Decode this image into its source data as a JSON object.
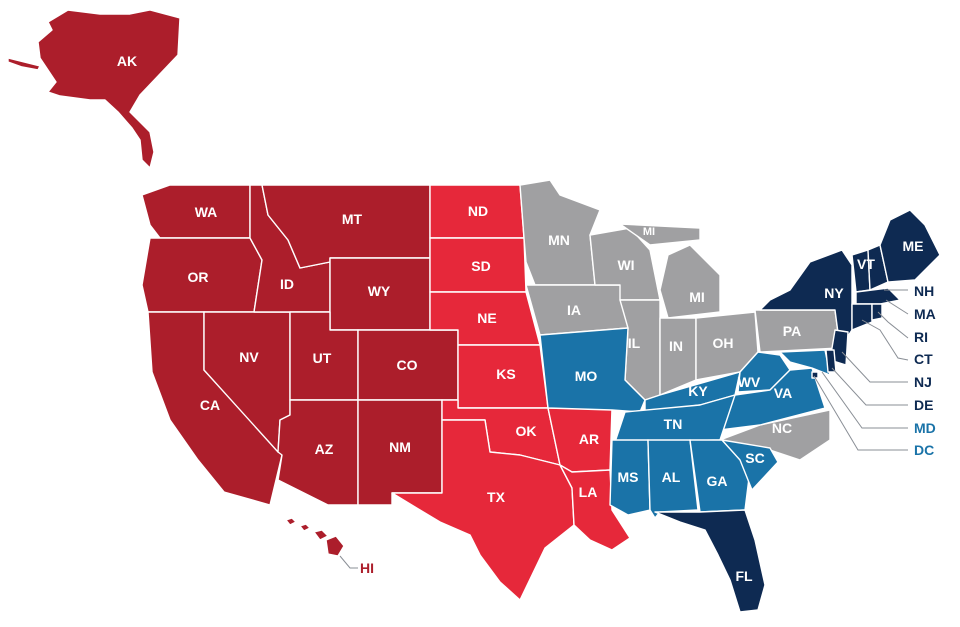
{
  "colors": {
    "dark_red": "#ac1e2b",
    "bright_red": "#e6283a",
    "gray": "#a0a0a2",
    "blue": "#1a73a8",
    "navy": "#0e2a52"
  },
  "states": {
    "AK": "AK",
    "HI": "HI",
    "WA": "WA",
    "OR": "OR",
    "CA": "CA",
    "NV": "NV",
    "ID": "ID",
    "MT": "MT",
    "WY": "WY",
    "UT": "UT",
    "CO": "CO",
    "AZ": "AZ",
    "NM": "NM",
    "ND": "ND",
    "SD": "SD",
    "NE": "NE",
    "KS": "KS",
    "OK": "OK",
    "TX": "TX",
    "AR": "AR",
    "LA": "LA",
    "MN": "MN",
    "IA": "IA",
    "WI": "WI",
    "MI": "MI",
    "IL": "IL",
    "IN": "IN",
    "OH": "OH",
    "MO": "MO",
    "KY": "KY",
    "TN": "TN",
    "MS": "MS",
    "AL": "AL",
    "GA": "GA",
    "FL": "FL",
    "SC": "SC",
    "NC": "NC",
    "VA": "VA",
    "WV": "WV",
    "PA": "PA",
    "NY": "NY",
    "VT": "VT",
    "ME": "ME",
    "NH": "NH",
    "MA": "MA",
    "RI": "RI",
    "CT": "CT",
    "NJ": "NJ",
    "DE": "DE",
    "MD": "MD",
    "DC": "DC"
  }
}
